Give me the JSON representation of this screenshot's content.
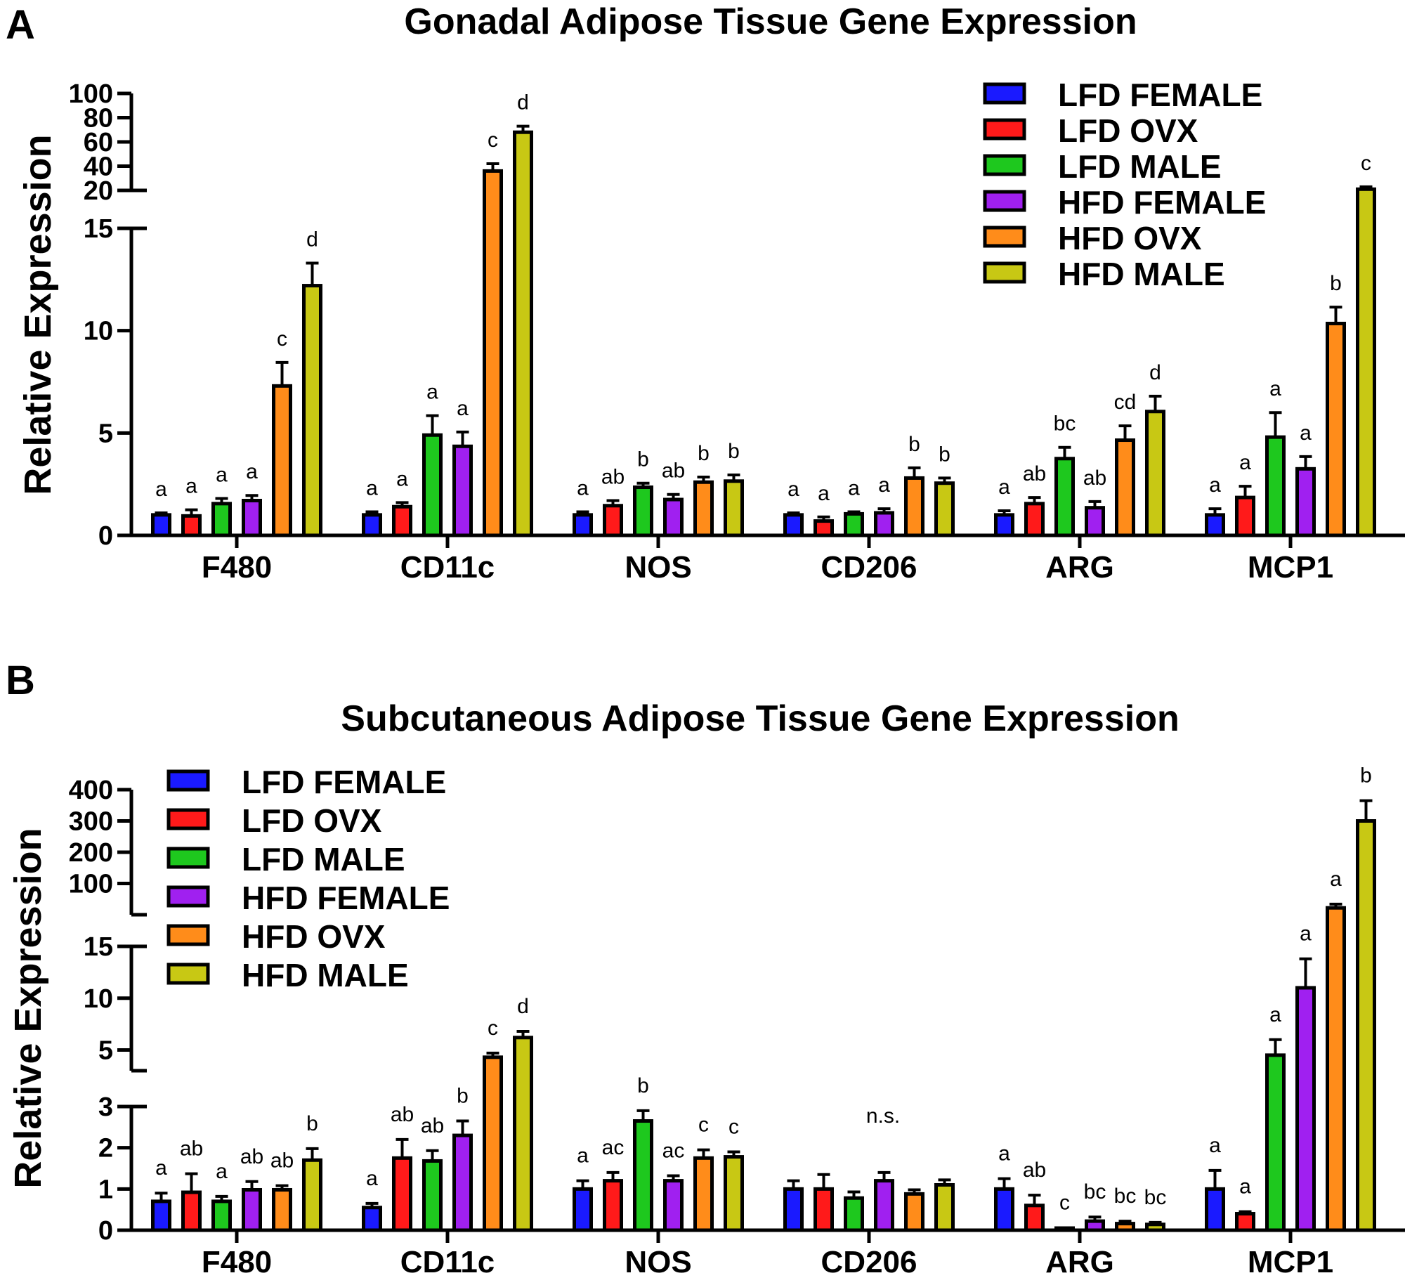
{
  "colors": {
    "LFD FEMALE": "#1a1aff",
    "LFD OVX": "#ff1a1a",
    "LFD MALE": "#1ec81e",
    "HFD FEMALE": "#a020f0",
    "HFD OVX": "#ff8c1a",
    "HFD MALE": "#c8c814"
  },
  "chart_data": [
    {
      "type": "bar",
      "panel_label": "A",
      "title": "Gonadal Adipose Tissue Gene  Expression",
      "ylabel": "Relative Expression",
      "xlabel": "",
      "categories": [
        "F480",
        "CD11c",
        "NOS",
        "CD206",
        "ARG",
        "MCP1"
      ],
      "y_axis_broken": true,
      "ylim_lower": [
        0,
        15
      ],
      "ylim_upper": [
        20,
        100
      ],
      "yticks_lower": [
        "0",
        "5",
        "10",
        "15"
      ],
      "yticks_upper": [
        "20",
        "40",
        "60",
        "80",
        "100"
      ],
      "legend_position": "top-right",
      "series": [
        {
          "name": "LFD FEMALE",
          "values": [
            1.0,
            1.0,
            1.0,
            1.0,
            1.0,
            1.0
          ],
          "errors": [
            0.1,
            0.15,
            0.15,
            0.1,
            0.2,
            0.3
          ]
        },
        {
          "name": "LFD OVX",
          "values": [
            0.95,
            1.4,
            1.45,
            0.7,
            1.55,
            1.85
          ],
          "errors": [
            0.3,
            0.2,
            0.25,
            0.2,
            0.3,
            0.55
          ]
        },
        {
          "name": "LFD MALE",
          "values": [
            1.55,
            4.9,
            2.35,
            1.05,
            3.75,
            4.8
          ],
          "errors": [
            0.25,
            0.95,
            0.2,
            0.1,
            0.55,
            1.2
          ]
        },
        {
          "name": "HFD FEMALE",
          "values": [
            1.7,
            4.35,
            1.75,
            1.1,
            1.35,
            3.25
          ],
          "errors": [
            0.25,
            0.7,
            0.25,
            0.2,
            0.3,
            0.6
          ]
        },
        {
          "name": "HFD OVX",
          "values": [
            7.3,
            36,
            2.6,
            2.8,
            4.65,
            10.35
          ],
          "errors": [
            1.15,
            6,
            0.25,
            0.5,
            0.7,
            0.8
          ]
        },
        {
          "name": "HFD MALE",
          "values": [
            12.2,
            68,
            2.65,
            2.55,
            6.05,
            21
          ],
          "errors": [
            1.1,
            5,
            0.3,
            0.25,
            0.75,
            2
          ]
        }
      ],
      "annotations": [
        [
          "a",
          "a",
          "a",
          "a",
          "c",
          "d"
        ],
        [
          "a",
          "a",
          "a",
          "a",
          "c",
          "d"
        ],
        [
          "a",
          "ab",
          "b",
          "ab",
          "b",
          "b"
        ],
        [
          "a",
          "a",
          "a",
          "a",
          "b",
          "b"
        ],
        [
          "a",
          "ab",
          "bc",
          "ab",
          "cd",
          "d"
        ],
        [
          "a",
          "a",
          "a",
          "a",
          "b",
          "c"
        ]
      ]
    },
    {
      "type": "bar",
      "panel_label": "B",
      "title": "Subcutaneous Adipose Tissue Gene  Expression",
      "ylabel": "Relative Expression",
      "xlabel": "",
      "categories": [
        "F480",
        "CD11c",
        "NOS",
        "CD206",
        "ARG",
        "MCP1"
      ],
      "y_axis_broken": true,
      "ylim_lower": [
        0,
        3
      ],
      "ylim_middle": [
        3,
        15
      ],
      "ylim_upper": [
        0,
        400
      ],
      "yticks_lower": [
        "0",
        "1",
        "2",
        "3"
      ],
      "yticks_middle": [
        "5",
        "10",
        "15"
      ],
      "yticks_upper": [
        "100",
        "200",
        "300",
        "400"
      ],
      "legend_position": "top-left",
      "series": [
        {
          "name": "LFD FEMALE",
          "values": [
            0.7,
            0.55,
            1.0,
            1.0,
            1.0,
            1.0
          ],
          "errors": [
            0.2,
            0.1,
            0.2,
            0.2,
            0.25,
            0.45
          ]
        },
        {
          "name": "LFD OVX",
          "values": [
            0.92,
            1.75,
            1.2,
            1.0,
            0.6,
            0.4
          ],
          "errors": [
            0.45,
            0.45,
            0.2,
            0.35,
            0.25,
            0.05
          ]
        },
        {
          "name": "LFD MALE",
          "values": [
            0.7,
            1.68,
            2.65,
            0.78,
            0.04,
            4.5
          ],
          "errors": [
            0.12,
            0.25,
            0.25,
            0.15,
            0.02,
            1.5
          ]
        },
        {
          "name": "HFD FEMALE",
          "values": [
            0.98,
            2.3,
            1.2,
            1.2,
            0.22,
            11
          ],
          "errors": [
            0.2,
            0.35,
            0.12,
            0.2,
            0.1,
            2.8
          ]
        },
        {
          "name": "HFD OVX",
          "values": [
            0.98,
            4.3,
            1.75,
            0.88,
            0.16,
            22
          ],
          "errors": [
            0.1,
            0.4,
            0.2,
            0.1,
            0.06,
            12
          ]
        },
        {
          "name": "HFD MALE",
          "values": [
            1.7,
            6.2,
            1.78,
            1.1,
            0.14,
            300
          ],
          "errors": [
            0.28,
            0.6,
            0.12,
            0.12,
            0.05,
            65
          ]
        }
      ],
      "annotations": [
        [
          "a",
          "ab",
          "a",
          "ab",
          "ab",
          "b"
        ],
        [
          "a",
          "ab",
          "ab",
          "b",
          "c",
          "d"
        ],
        [
          "a",
          "ac",
          "b",
          "ac",
          "c",
          "c"
        ],
        [
          "n.s."
        ],
        [
          "a",
          "ab",
          "c",
          "bc",
          "bc",
          "bc"
        ],
        [
          "a",
          "a",
          "a",
          "a",
          "a",
          "b"
        ]
      ]
    }
  ]
}
